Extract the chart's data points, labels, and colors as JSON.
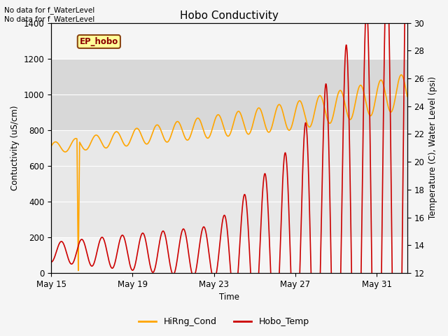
{
  "title": "Hobo Conductivity",
  "xlabel": "Time",
  "ylabel_left": "Contuctivity (uS/cm)",
  "ylabel_right": "Temperature (C), Water Level (psi)",
  "text_annotations": [
    "No data for f_WaterLevel",
    "No data for f_WaterLevel"
  ],
  "legend_box_label": "EP_hobo",
  "xlim_days": [
    0,
    17.5
  ],
  "ylim_left": [
    0,
    1400
  ],
  "ylim_right": [
    12,
    30
  ],
  "xtick_labels": [
    "May 15",
    "May 19",
    "May 23",
    "May 27",
    "May 31"
  ],
  "xtick_positions": [
    0,
    4,
    8,
    12,
    16
  ],
  "yticks_left": [
    0,
    200,
    400,
    600,
    800,
    1000,
    1200,
    1400
  ],
  "band_low": [
    200,
    800
  ],
  "band_mid": [
    800,
    1200
  ],
  "bg_outer": "#f0f0f0",
  "bg_inner": "#f5f5f5",
  "band_low_color": "#e8e8e8",
  "band_mid_color": "#d8d8d8",
  "cond_color": "#FFA500",
  "temp_color": "#CC0000",
  "ep_hobo_box_color": "#FFFF99",
  "ep_hobo_text_color": "#8B0000",
  "ep_hobo_border_color": "#8B4513"
}
